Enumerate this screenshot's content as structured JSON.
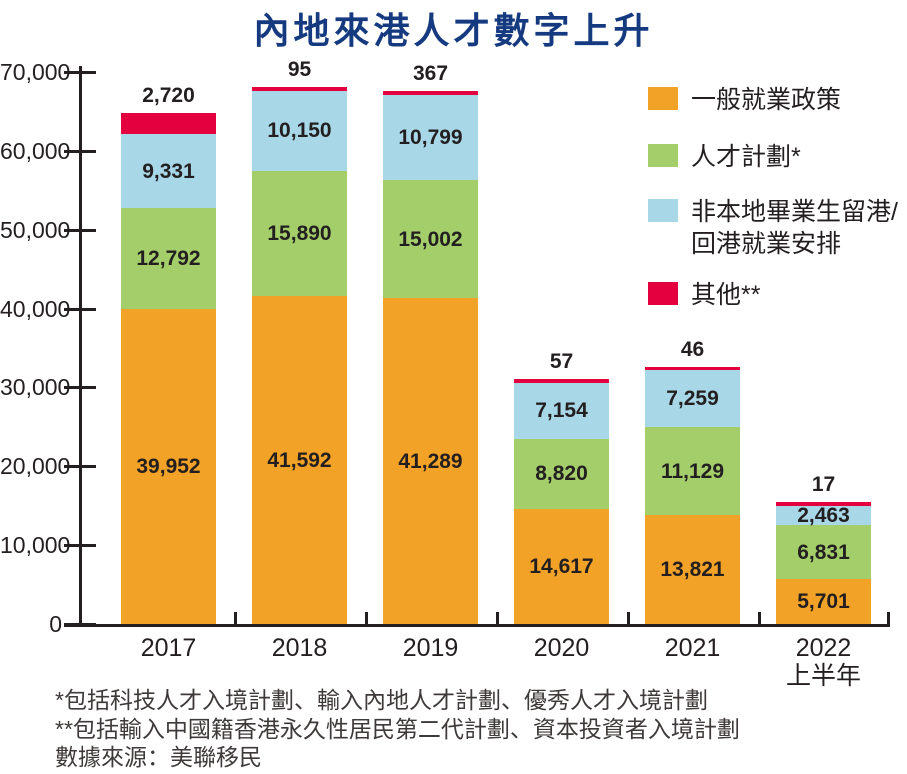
{
  "title": "內地來港人才數字上升",
  "colors": {
    "title": "#153A80",
    "axis": "#231F20",
    "text": "#231F20",
    "footnote": "#3E3A39"
  },
  "chart_data": {
    "type": "bar",
    "stacked": true,
    "title": "內地來港人才數字上升",
    "categories": [
      [
        "2017"
      ],
      [
        "2018"
      ],
      [
        "2019"
      ],
      [
        "2020"
      ],
      [
        "2021"
      ],
      [
        "2022",
        "上半年"
      ]
    ],
    "series": [
      {
        "id": "general-employment-policy",
        "name": "一般就業政策",
        "color": "#F2A226",
        "values": [
          39952,
          41592,
          41289,
          14617,
          13821,
          5701
        ]
      },
      {
        "id": "talent-schemes",
        "name": "人才計劃*",
        "color": "#A4CE6A",
        "values": [
          12792,
          15890,
          15002,
          8820,
          11129,
          6831
        ]
      },
      {
        "id": "non-local-graduates",
        "name": "非本地畢業生留港/回港就業安排",
        "color": "#A8D8E8",
        "values": [
          9331,
          10150,
          10799,
          7154,
          7259,
          2463
        ]
      },
      {
        "id": "others",
        "name": "其他**",
        "color": "#E4003E",
        "values": [
          2720,
          95,
          367,
          57,
          46,
          17
        ]
      }
    ],
    "legend_lines": [
      [
        "一般就業政策"
      ],
      [
        "人才計劃*"
      ],
      [
        "非本地畢業生留港/",
        "回港就業安排"
      ],
      [
        "其他**"
      ]
    ],
    "ylim": [
      0,
      70000
    ],
    "ytick_step": 10000,
    "y_tick_labels": [
      "0",
      "10,000",
      "20,000",
      "30,000",
      "40,000",
      "50,000",
      "60,000",
      "70,000"
    ],
    "xlabel": "",
    "ylabel": "",
    "grid": false,
    "legend_position": "top-right",
    "value_labels": "inside-segments, others-above-bar"
  },
  "footnotes": [
    "*包括科技人才入境計劃、輸入內地人才計劃、優秀人才入境計劃",
    "**包括輸入中國籍香港永久性居民第二代計劃、資本投資者入境計劃",
    "數據來源：美聯移民"
  ]
}
